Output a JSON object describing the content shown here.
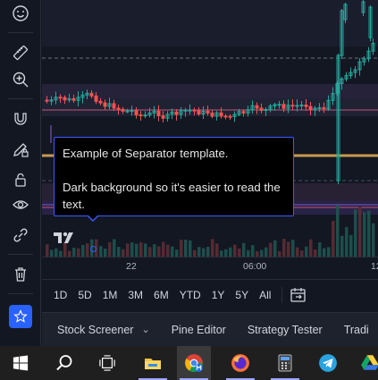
{
  "sidebar": {
    "tools": [
      {
        "name": "emoji-icon"
      },
      {
        "name": "ruler-icon"
      },
      {
        "name": "zoom-in-icon"
      },
      {
        "name": "magnet-icon"
      },
      {
        "name": "pencil-lock-icon"
      },
      {
        "name": "lock-icon"
      },
      {
        "name": "eye-icon"
      },
      {
        "name": "link-icon"
      },
      {
        "name": "trash-icon"
      },
      {
        "name": "star-icon"
      }
    ],
    "accent": "#2962ff"
  },
  "tooltip": {
    "line1": "Example of Separator template.",
    "line2": "Dark background so it's easier to read the text."
  },
  "time_axis": {
    "labels": [
      "22",
      "06:00",
      "12"
    ]
  },
  "ranges": [
    "1D",
    "5D",
    "1M",
    "3M",
    "6M",
    "YTD",
    "1Y",
    "5Y",
    "All"
  ],
  "bottom_tabs": [
    "Stock Screener",
    "Pine Editor",
    "Strategy Tester",
    "Tradi"
  ],
  "taskbar": {
    "apps": [
      "windows-start-icon",
      "search-icon",
      "task-view-icon",
      "file-explorer-icon",
      "chrome-icon",
      "firefox-icon",
      "calculator-icon",
      "telegram-icon",
      "google-drive-icon"
    ]
  },
  "colors": {
    "bull": "#26a69a",
    "bear": "#ef5350",
    "background": "#131722",
    "tooltip_border": "#3d5afe"
  }
}
